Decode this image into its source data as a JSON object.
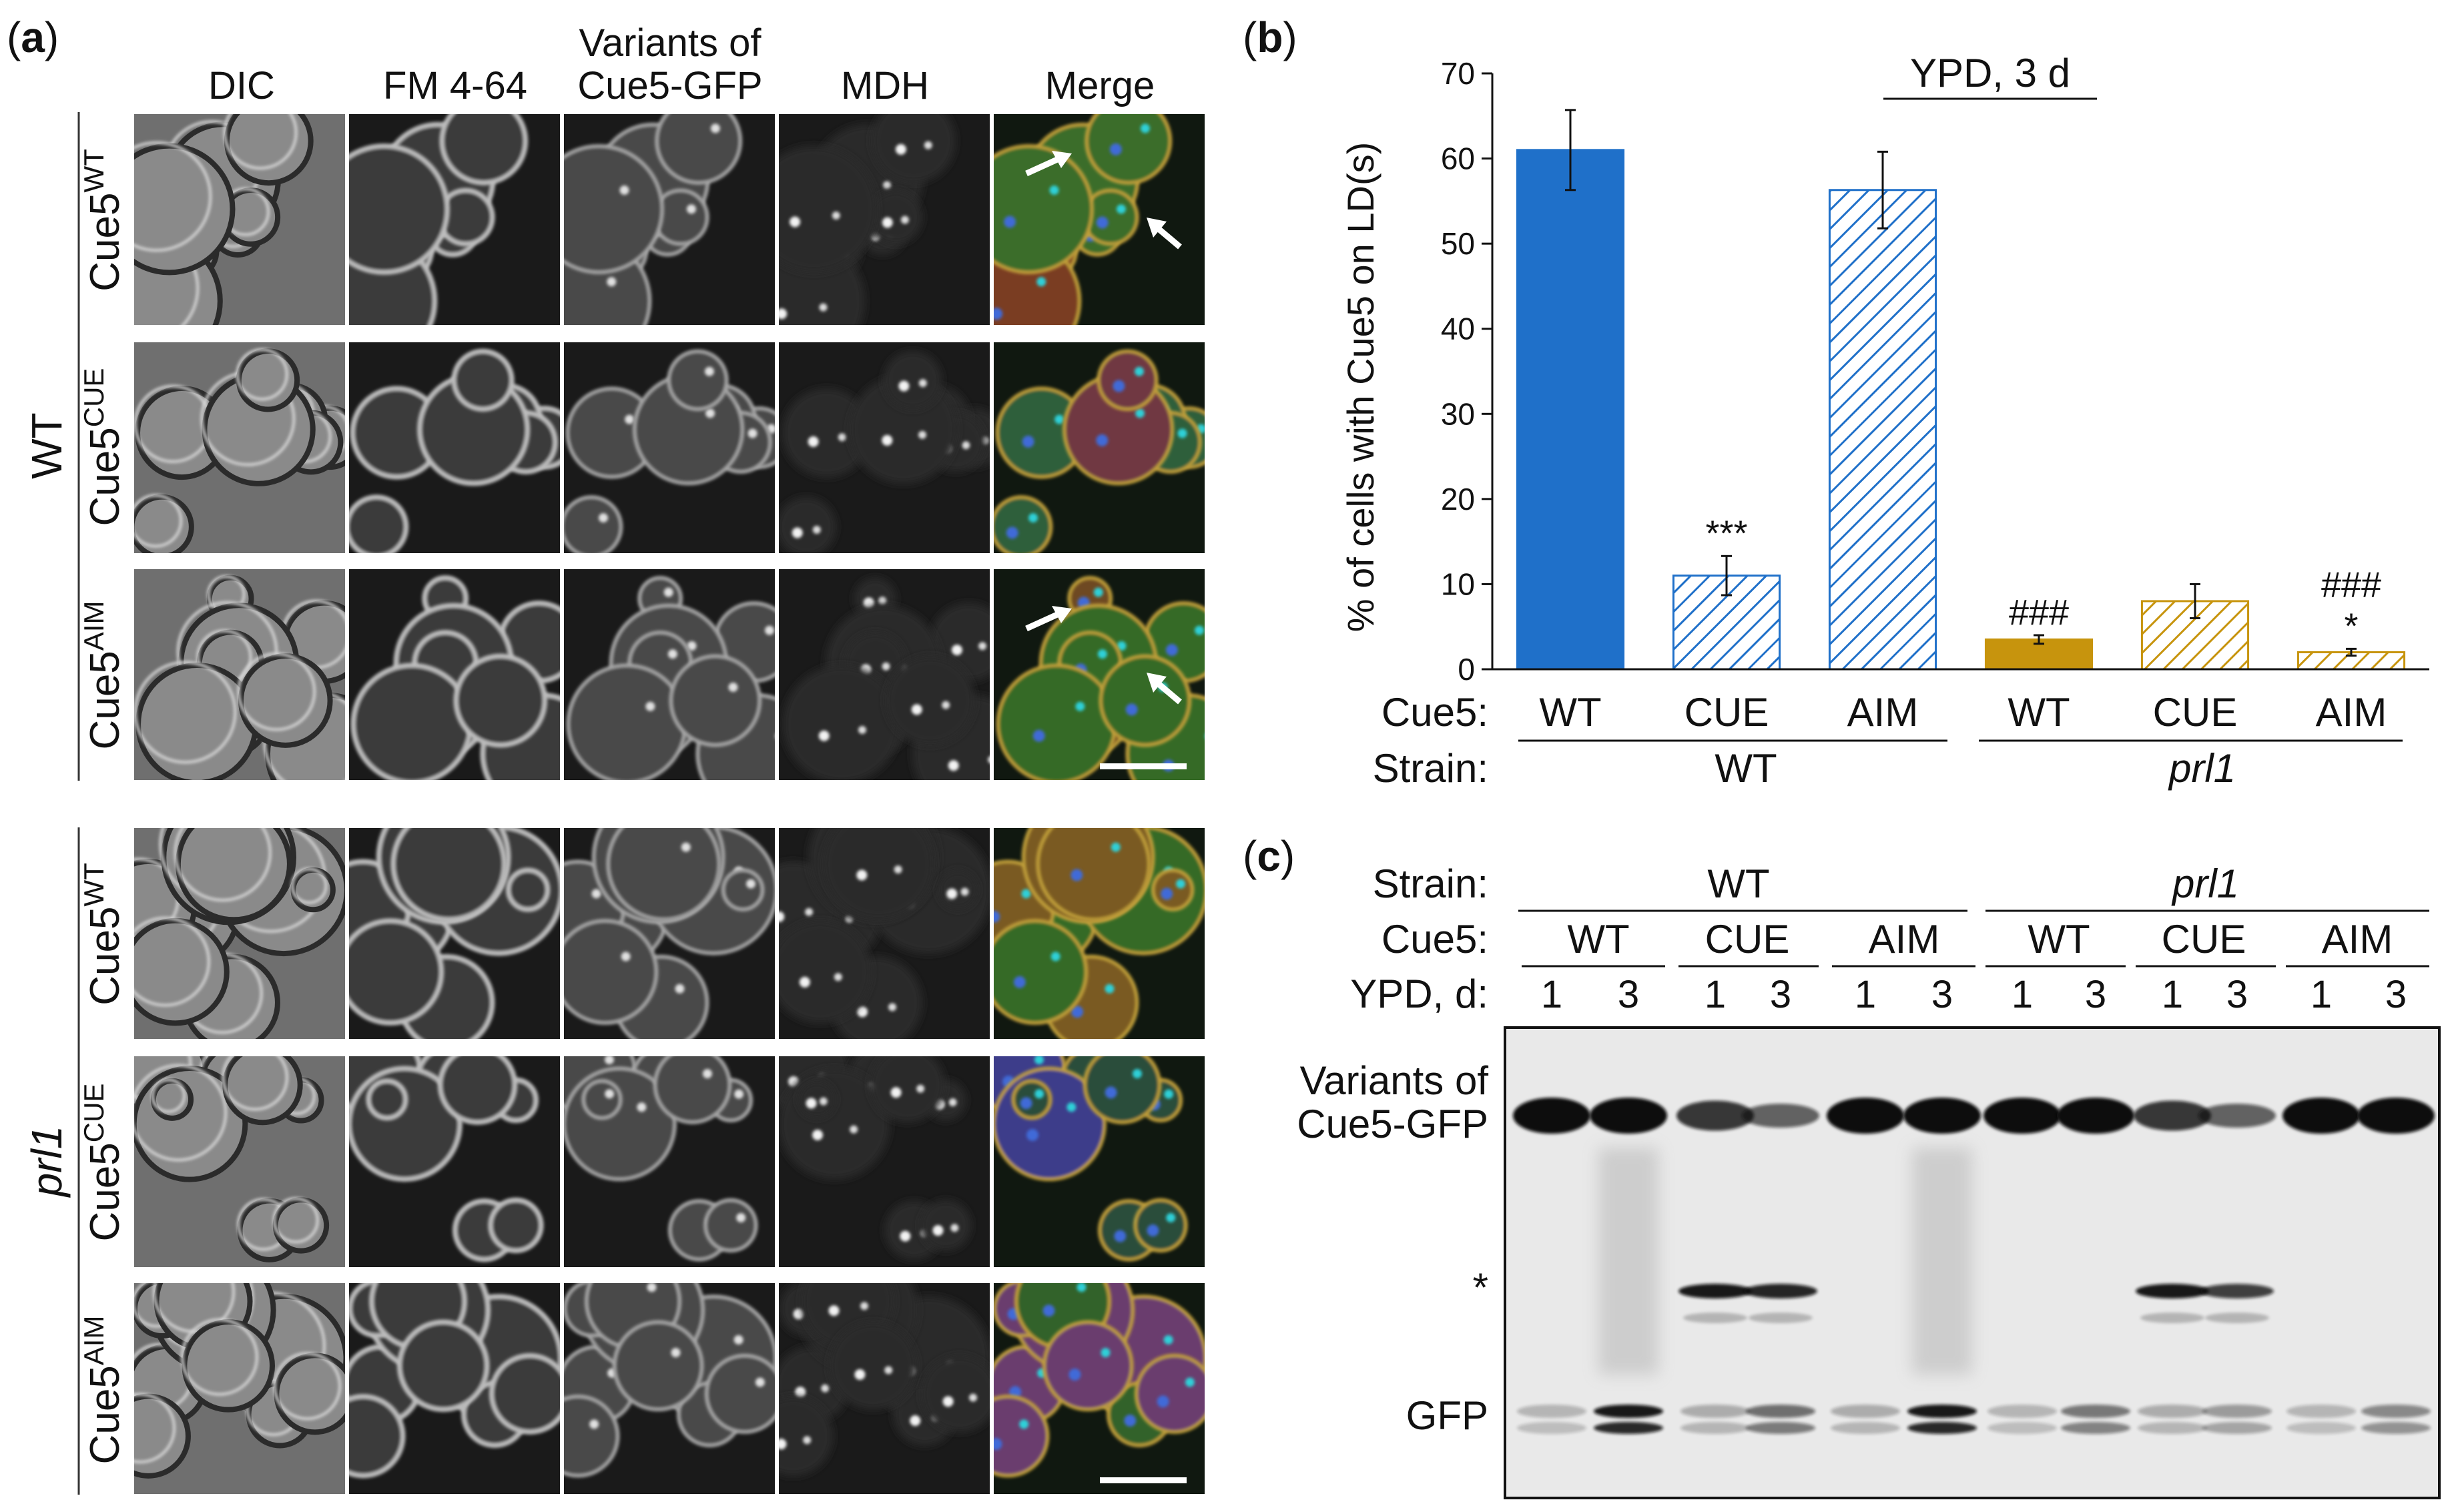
{
  "panel_a": {
    "label": "(a)",
    "label_letter": "a",
    "columns": [
      "DIC",
      "FM 4-64",
      "Variants of Cue5-GFP",
      "MDH",
      "Merge"
    ],
    "col3_line1": "Variants of",
    "col3_line2": "Cue5-GFP",
    "groups": [
      {
        "strain": "WT",
        "italic": false,
        "rows": [
          {
            "base": "Cue5",
            "sup": "WT",
            "merge_colors": [
              "#3a6d2a",
              "#7a3e22"
            ],
            "arrows": 2
          },
          {
            "base": "Cue5",
            "sup": "CUE",
            "merge_colors": [
              "#2e5f3a",
              "#703842"
            ],
            "arrows": 0
          },
          {
            "base": "Cue5",
            "sup": "AIM",
            "merge_colors": [
              "#356a28",
              "#6e4a22"
            ],
            "arrows": 2,
            "scalebar": true
          }
        ]
      },
      {
        "strain": "prl1",
        "italic": true,
        "rows": [
          {
            "base": "Cue5",
            "sup": "WT",
            "merge_colors": [
              "#356b25",
              "#7a5a22"
            ],
            "arrows": 0
          },
          {
            "base": "Cue5",
            "sup": "CUE",
            "merge_colors": [
              "#2a4e3a",
              "#3d3d8a"
            ],
            "arrows": 0
          },
          {
            "base": "Cue5",
            "sup": "AIM",
            "merge_colors": [
              "#30622c",
              "#6a3d6e"
            ],
            "arrows": 0,
            "scalebar": true
          }
        ]
      }
    ]
  },
  "panel_b": {
    "label": "(b)",
    "label_letter": "b",
    "condition": "YPD, 3 d",
    "cue5_label": "Cue5:",
    "strain_label": "Strain:",
    "strain_groups": [
      "WT",
      "prl1"
    ],
    "colors": {
      "wt_strain": "#1f70c9",
      "prl1_strain": "#c7940d"
    }
  },
  "chart_data": {
    "type": "bar",
    "title": "YPD, 3 d",
    "ylabel": "% of cells with Cue5 on LD(s)",
    "xlabel": "",
    "ylim": [
      0,
      70
    ],
    "yticks": [
      0,
      10,
      20,
      30,
      40,
      50,
      60,
      70
    ],
    "categories": [
      "WT",
      "CUE",
      "AIM",
      "WT",
      "CUE",
      "AIM"
    ],
    "strain": [
      "WT",
      "WT",
      "WT",
      "prl1",
      "prl1",
      "prl1"
    ],
    "values": [
      61,
      11,
      56.3,
      3.5,
      8,
      2
    ],
    "errors": [
      4.7,
      2.3,
      4.5,
      0.5,
      2,
      0.4
    ],
    "fill": [
      "solid",
      "hatched",
      "hatched",
      "solid",
      "hatched",
      "hatched"
    ],
    "annotations": [
      "",
      "***",
      "",
      "###",
      "",
      "###\n*"
    ]
  },
  "panel_c": {
    "label": "(c)",
    "label_letter": "c",
    "strain_label": "Strain:",
    "cue5_label": "Cue5:",
    "ypd_label": "YPD, d:",
    "strains": [
      {
        "name": "WT",
        "italic": false,
        "cue5": [
          "WT",
          "CUE",
          "AIM"
        ]
      },
      {
        "name": "prl1",
        "italic": true,
        "cue5": [
          "WT",
          "CUE",
          "AIM"
        ]
      }
    ],
    "days": [
      "1",
      "3",
      "1",
      "3",
      "1",
      "3",
      "1",
      "3",
      "1",
      "3",
      "1",
      "3"
    ],
    "band_labels": {
      "cue5_line1": "Variants of",
      "cue5_line2": "Cue5-GFP",
      "star": "*",
      "gfp": "GFP"
    },
    "lanes": {
      "cue5_gfp": [
        1.0,
        1.0,
        0.7,
        0.4,
        1.0,
        1.0,
        1.0,
        1.0,
        0.7,
        0.4,
        1.0,
        1.0
      ],
      "degradation": [
        0,
        1,
        0,
        0,
        0,
        1,
        0,
        0,
        0,
        0,
        0,
        0
      ],
      "star_band": [
        0,
        0,
        1,
        0.9,
        0,
        0,
        0,
        0,
        1,
        0.7,
        0,
        0
      ],
      "gfp": [
        0.1,
        1.0,
        0.15,
        0.5,
        0.15,
        1.0,
        0.1,
        0.45,
        0.15,
        0.25,
        0.1,
        0.35
      ]
    }
  }
}
